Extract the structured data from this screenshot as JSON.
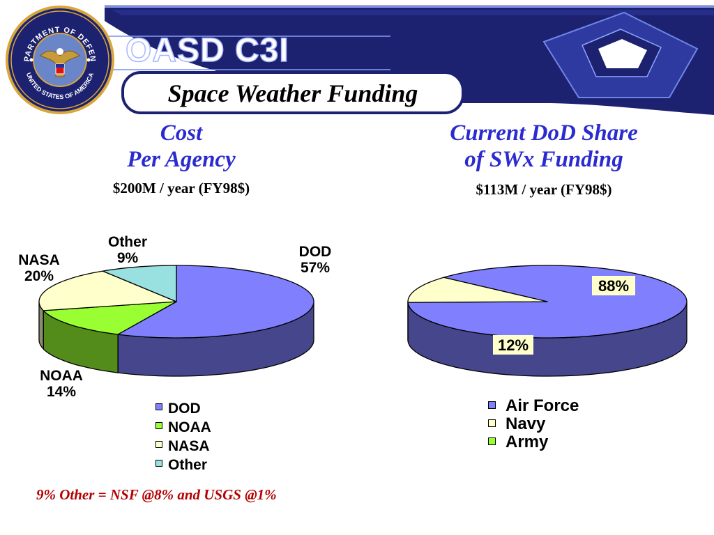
{
  "header": {
    "logo_text": "OASD C3I",
    "title": "Space Weather Funding",
    "seal_top_text": "DEPARTMENT OF DEFENSE",
    "seal_bottom_text": "UNITED STATES OF AMERICA"
  },
  "left_chart": {
    "title_line1": "Cost",
    "title_line2": "Per Agency",
    "subtitle": "$200M / year (FY98$)"
  },
  "right_chart": {
    "title_line1": "Current DoD Share",
    "title_line2": "of SWx Funding",
    "subtitle": "$113M / year (FY98$)"
  },
  "footnote": "9% Other =  NSF @8% and USGS @1%",
  "colors": {
    "banner_blue": "#1c2170",
    "title_blue": "#2b2bd0",
    "dod": "#8080ff",
    "noaa": "#99ff33",
    "nasa": "#ffffcc",
    "other": "#99e0e0",
    "air_force": "#8080ff",
    "navy": "#ffffcc",
    "army": "#99ff33",
    "footnote_red": "#b40000"
  },
  "chart_data": [
    {
      "type": "pie",
      "slices": [
        {
          "label": "DOD",
          "value": 57,
          "pct_label": "57%",
          "color": "#8080ff"
        },
        {
          "label": "NOAA",
          "value": 14,
          "pct_label": "14%",
          "color": "#99ff33"
        },
        {
          "label": "NASA",
          "value": 20,
          "pct_label": "20%",
          "color": "#ffffcc"
        },
        {
          "label": "Other",
          "value": 9,
          "pct_label": "9%",
          "color": "#99e0e0"
        }
      ],
      "legend": [
        "DOD",
        "NOAA",
        "NASA",
        "Other"
      ],
      "legend_placement": "bottom"
    },
    {
      "type": "pie",
      "slices": [
        {
          "label": "Air Force",
          "value": 88,
          "pct_label": "88%",
          "color": "#8080ff"
        },
        {
          "label": "Navy",
          "value": 12,
          "pct_label": "12%",
          "color": "#ffffcc"
        },
        {
          "label": "Army",
          "value": 0,
          "pct_label": "",
          "color": "#99ff33"
        }
      ],
      "legend": [
        "Air Force",
        "Navy",
        "Army"
      ],
      "legend_placement": "bottom"
    }
  ]
}
